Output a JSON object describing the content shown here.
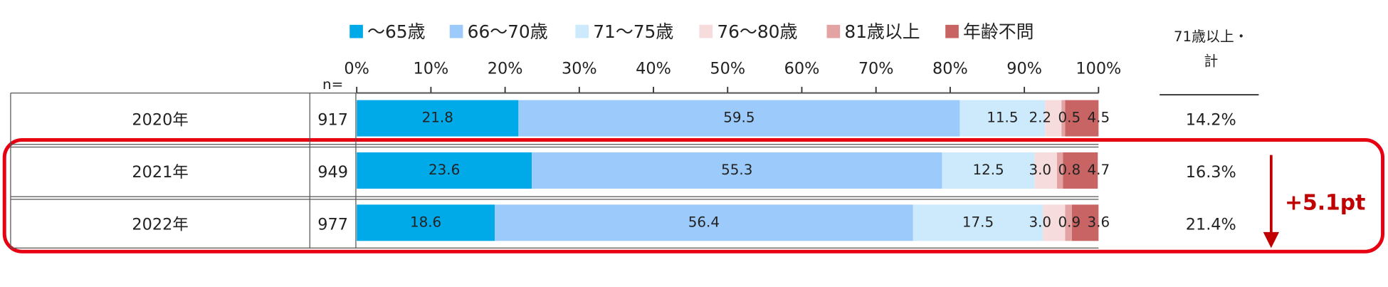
{
  "chart_data": {
    "type": "stacked_bar_horizontal",
    "categories": [
      "2020年",
      "2021年",
      "2022年"
    ],
    "n": {
      "label": "n=",
      "values": [
        917,
        949,
        977
      ]
    },
    "series": [
      {
        "name": "～65歳",
        "color": "#00a9e8",
        "values": [
          21.8,
          23.6,
          18.6
        ],
        "value_labels": [
          "21.8",
          "23.6",
          "18.6"
        ]
      },
      {
        "name": "66～70歳",
        "color": "#9ccbfb",
        "values": [
          59.5,
          55.3,
          56.4
        ],
        "value_labels": [
          "59.5",
          "55.3",
          "56.4"
        ]
      },
      {
        "name": "71～75歳",
        "color": "#cdeafc",
        "values": [
          11.5,
          12.5,
          17.5
        ],
        "value_labels": [
          "11.5",
          "12.5",
          "17.5"
        ]
      },
      {
        "name": "76～80歳",
        "color": "#f6dcdc",
        "values": [
          2.2,
          3.0,
          3.0
        ],
        "value_labels": [
          "2.2",
          "3.0",
          "3.0"
        ]
      },
      {
        "name": "81歳以上",
        "color": "#e3a3a3",
        "values": [
          0.5,
          0.8,
          0.9
        ],
        "value_labels": [
          "0.5",
          "0.8",
          "0.9"
        ]
      },
      {
        "name": "年齢不問",
        "color": "#c96464",
        "values": [
          4.5,
          4.7,
          3.6
        ],
        "value_labels": [
          "4.5",
          "4.7",
          "3.6"
        ]
      }
    ],
    "xlim": [
      0,
      100
    ],
    "xticks": [
      {
        "value": 0,
        "label": "0%"
      },
      {
        "value": 10,
        "label": "10%"
      },
      {
        "value": 20,
        "label": "20%"
      },
      {
        "value": 30,
        "label": "30%"
      },
      {
        "value": 40,
        "label": "40%"
      },
      {
        "value": 50,
        "label": "50%"
      },
      {
        "value": 60,
        "label": "60%"
      },
      {
        "value": 70,
        "label": "70%"
      },
      {
        "value": 80,
        "label": "80%"
      },
      {
        "value": 90,
        "label": "90%"
      },
      {
        "value": 100,
        "label": "100%"
      }
    ],
    "total": {
      "title": [
        "71歳以上・",
        "計"
      ],
      "values": [
        14.2,
        16.3,
        21.4
      ],
      "value_labels": [
        "14.2%",
        "16.3%",
        "21.4%"
      ]
    },
    "annotation": "+5.1pt",
    "legend": "top"
  }
}
